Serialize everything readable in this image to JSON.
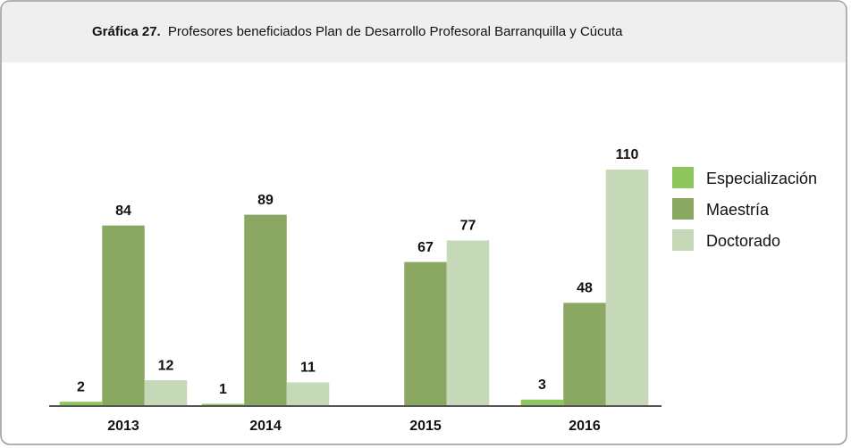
{
  "chart_data": {
    "type": "bar",
    "title_label": "Gráfica 27.",
    "title": "Profesores beneficiados Plan de Desarrollo Profesoral  Barranquilla y Cúcuta",
    "categories": [
      "2013",
      "2014",
      "2015",
      "2016"
    ],
    "series": [
      {
        "name": "Especialización",
        "color": "#8cc65c",
        "values": [
          2,
          1,
          null,
          3
        ]
      },
      {
        "name": "Maestría",
        "color": "#8aa862",
        "values": [
          84,
          89,
          67,
          48
        ]
      },
      {
        "name": "Doctorado",
        "color": "#c5d9b8",
        "values": [
          12,
          11,
          77,
          110
        ]
      }
    ],
    "legend": "right"
  }
}
